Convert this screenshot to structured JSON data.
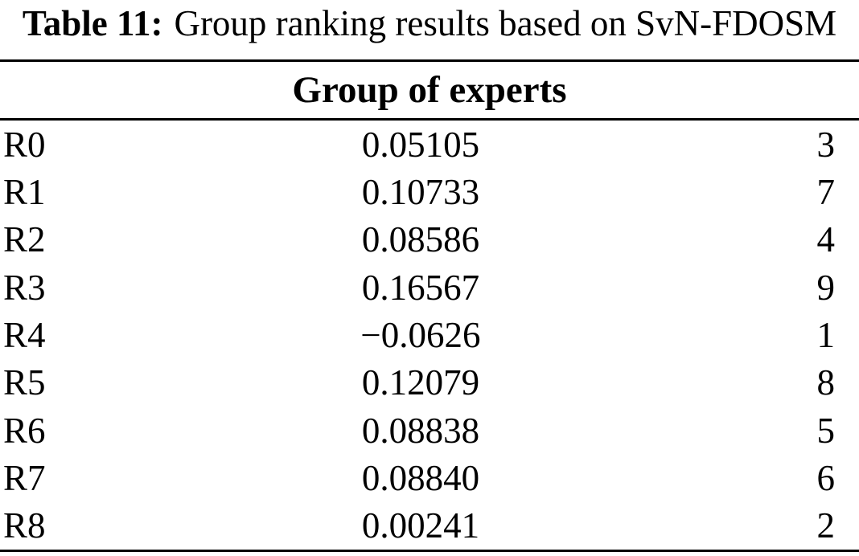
{
  "colors": {
    "text": "#000000",
    "background": "#ffffff",
    "rule": "#000000"
  },
  "caption": {
    "label": "Table 11:",
    "text": "Group ranking results based on SvN-FDOSM"
  },
  "table": {
    "header": "Group of experts",
    "rows": [
      {
        "id": "R0",
        "value": "0.05105",
        "rank": "3"
      },
      {
        "id": "R1",
        "value": "0.10733",
        "rank": "7"
      },
      {
        "id": "R2",
        "value": "0.08586",
        "rank": "4"
      },
      {
        "id": "R3",
        "value": "0.16567",
        "rank": "9"
      },
      {
        "id": "R4",
        "value": "−0.0626",
        "rank": "1"
      },
      {
        "id": "R5",
        "value": "0.12079",
        "rank": "8"
      },
      {
        "id": "R6",
        "value": "0.08838",
        "rank": "5"
      },
      {
        "id": "R7",
        "value": "0.08840",
        "rank": "6"
      },
      {
        "id": "R8",
        "value": "0.00241",
        "rank": "2"
      }
    ]
  }
}
